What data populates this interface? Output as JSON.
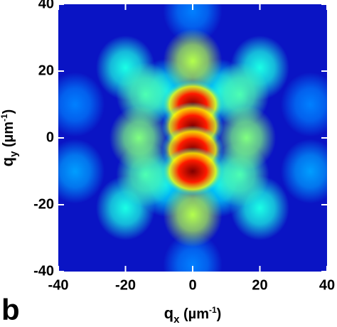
{
  "chart_data": {
    "type": "heatmap",
    "panel_label": "b",
    "xlabel_parts": [
      "q",
      "x",
      " (µm",
      "-1",
      ")"
    ],
    "ylabel_parts": [
      "q",
      "y",
      " (µm",
      "-1",
      ")"
    ],
    "xlim": [
      -40,
      40
    ],
    "ylim": [
      -40,
      40
    ],
    "xticks": [
      -40,
      -20,
      0,
      20,
      40
    ],
    "yticks": [
      -40,
      -20,
      0,
      20,
      40
    ],
    "background_color": "#0a14c4",
    "colormap": "jet",
    "x": [
      0,
      0,
      -35,
      35,
      -35,
      35,
      -8,
      8,
      -8,
      8,
      -20,
      20,
      -20,
      20,
      -14,
      14,
      -14,
      14,
      -16,
      16,
      0,
      0,
      0,
      0,
      0,
      0
    ],
    "y": [
      38,
      -38,
      10,
      10,
      -10,
      -10,
      14,
      14,
      -14,
      -14,
      21,
      21,
      -21,
      -21,
      13,
      13,
      -11,
      -11,
      0,
      0,
      23,
      -23,
      10,
      3.5,
      -3.5,
      -10
    ],
    "values": [
      0.25,
      0.25,
      0.25,
      0.25,
      0.28,
      0.28,
      0.35,
      0.35,
      0.35,
      0.35,
      0.4,
      0.4,
      0.4,
      0.4,
      0.45,
      0.45,
      0.45,
      0.45,
      0.5,
      0.5,
      0.55,
      0.55,
      1.0,
      1.0,
      1.0,
      1.0
    ]
  }
}
